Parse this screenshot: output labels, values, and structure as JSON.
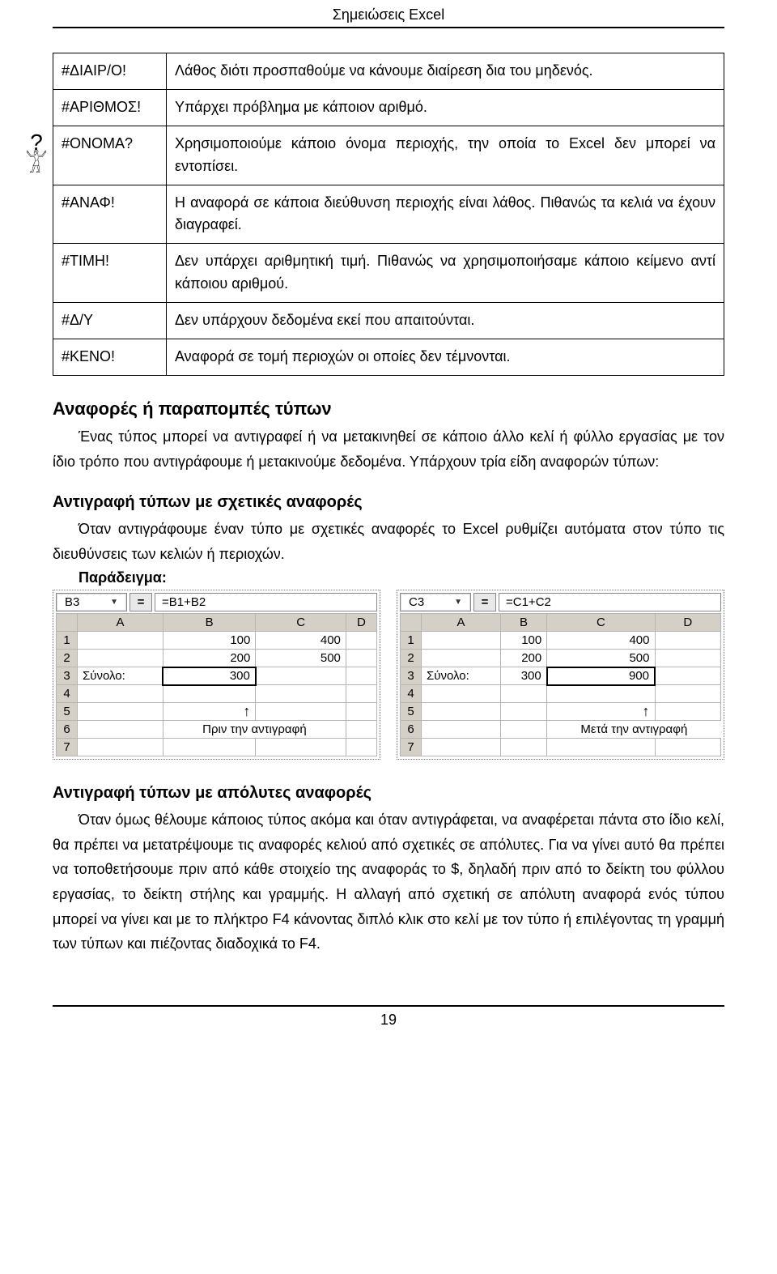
{
  "header_title": "Σημειώσεις Excel",
  "page_number": "19",
  "error_table": {
    "rows": [
      {
        "code": "#ΔΙΑΙΡ/Ο!",
        "desc": "Λάθος διότι προσπαθούμε να κάνουμε διαίρεση δια του μηδενός."
      },
      {
        "code": "#ΑΡΙΘΜΟΣ!",
        "desc": "Υπάρχει πρόβλημα με κάποιον αριθμό."
      },
      {
        "code": "#ΟΝΟΜΑ?",
        "desc": "Χρησιμοποιούμε κάποιο όνομα περιοχής, την οποία το Excel δεν μπορεί να εντοπίσει."
      },
      {
        "code": "#ΑΝΑΦ!",
        "desc": "Η αναφορά σε κάποια διεύθυνση περιοχής είναι λάθος. Πιθανώς τα κελιά να έχουν διαγραφεί."
      },
      {
        "code": "#ΤΙΜΗ!",
        "desc": "Δεν υπάρχει αριθμητική τιμή. Πιθανώς να χρησιμοποιήσαμε κάποιο κείμενο αντί κάποιου αριθμού."
      },
      {
        "code": "#Δ/Υ",
        "desc": "Δεν υπάρχουν δεδομένα εκεί που απαιτούνται."
      },
      {
        "code": "#ΚΕΝΟ!",
        "desc": "Αναφορά σε τομή περιοχών οι οποίες δεν τέμνονται."
      }
    ]
  },
  "section1": {
    "heading": "Αναφορές ή παραπομπές τύπων",
    "para": "Ένας τύπος μπορεί να αντιγραφεί ή να μετακινηθεί σε κάποιο άλλο κελί ή φύλλο εργασίας με τον ίδιο τρόπο που αντιγράφουμε ή μετακινούμε δεδομένα. Υπάρχουν τρία είδη αναφορών τύπων:"
  },
  "section2": {
    "heading": "Αντιγραφή τύπων με σχετικές αναφορές",
    "para": "Όταν αντιγράφουμε έναν τύπο με σχετικές αναφορές το Excel ρυθμίζει αυτόματα στον τύπο τις διευθύνσεις των κελιών ή περιοχών.",
    "example_label": "Παράδειγμα:"
  },
  "sheet_left": {
    "cell_ref": "B3",
    "formula": "=B1+B2",
    "col_headers": [
      "A",
      "B",
      "C",
      "D"
    ],
    "row_headers": [
      "1",
      "2",
      "3",
      "4",
      "5",
      "6",
      "7"
    ],
    "rows": [
      [
        "",
        "100",
        "400",
        ""
      ],
      [
        "",
        "200",
        "500",
        ""
      ],
      [
        "Σύνολο:",
        "300",
        "",
        ""
      ]
    ],
    "selected": "B3",
    "caption": "Πριν την αντιγραφή"
  },
  "sheet_right": {
    "cell_ref": "C3",
    "formula": "=C1+C2",
    "col_headers": [
      "A",
      "B",
      "C",
      "D"
    ],
    "row_headers": [
      "1",
      "2",
      "3",
      "4",
      "5",
      "6",
      "7"
    ],
    "rows": [
      [
        "",
        "100",
        "400",
        ""
      ],
      [
        "",
        "200",
        "500",
        ""
      ],
      [
        "Σύνολο:",
        "300",
        "900",
        ""
      ]
    ],
    "selected": "C3",
    "caption": "Μετά την αντιγραφή"
  },
  "section3": {
    "heading": "Αντιγραφή τύπων με απόλυτες αναφορές",
    "para": "Όταν όμως θέλουμε κάποιος τύπος ακόμα και όταν αντιγράφεται, να αναφέρεται πάντα στο ίδιο κελί, θα πρέπει να μετατρέψουμε τις αναφορές κελιού από σχετικές σε απόλυτες. Για να γίνει αυτό θα πρέπει να τοποθετήσουμε πριν από κάθε στοιχείο της αναφοράς το $, δηλαδή πριν από το δείκτη του φύλλου εργασίας, το δείκτη στήλης και γραμμής. Η αλλαγή από σχετική σε απόλυτη αναφορά ενός τύπου μπορεί να γίνει και με το πλήκτρο F4 κάνοντας διπλό κλικ στο κελί με τον τύπο ή επιλέγοντας τη γραμμή των τύπων και πιέζοντας διαδοχικά το F4."
  }
}
